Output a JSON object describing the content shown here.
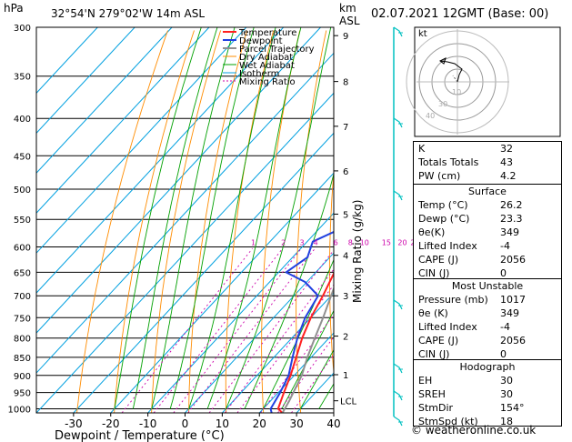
{
  "header": {
    "pressure_unit": "hPa",
    "location": "32°54'N  279°02'W  14m  ASL",
    "height_unit": "km",
    "height_unit2": "ASL",
    "datetime": "02.07.2021  12GMT  (Base: 00)"
  },
  "colors": {
    "temperature": "#ff2020",
    "dewpoint": "#2040e0",
    "parcel": "#909090",
    "dry_adiabat": "#ff8c00",
    "wet_adiabat": "#00a000",
    "isotherm": "#00a0e0",
    "mixing_ratio": "#cc00aa",
    "wind": "#00c0c0"
  },
  "chart_data": {
    "type": "line",
    "xlabel": "Dewpoint / Temperature (°C)",
    "ylabel": "Mixing Ratio (g/kg)",
    "x_ticks": [
      -30,
      -20,
      -10,
      0,
      10,
      20,
      30,
      40
    ],
    "xlim": [
      -40,
      40
    ],
    "pressure_levels": [
      300,
      350,
      400,
      450,
      500,
      550,
      600,
      650,
      700,
      750,
      800,
      850,
      900,
      950,
      1000
    ],
    "ylim_hpa": [
      1013,
      300
    ],
    "height_ticks_km": [
      {
        "label": "9",
        "p": 308
      },
      {
        "label": "8",
        "p": 356
      },
      {
        "label": "7",
        "p": 410
      },
      {
        "label": "6",
        "p": 472
      },
      {
        "label": "5",
        "p": 541
      },
      {
        "label": "4",
        "p": 616
      },
      {
        "label": "3",
        "p": 700
      },
      {
        "label": "2",
        "p": 795
      },
      {
        "label": "1",
        "p": 898
      },
      {
        "label": "LCL",
        "p": 975
      }
    ],
    "mixing_ratio_labels": [
      "1",
      "2",
      "3",
      "4",
      "6",
      "8",
      "10",
      "15",
      "20",
      "25"
    ],
    "legend": [
      "Temperature",
      "Dewpoint",
      "Parcel Trajectory",
      "Dry Adiabat",
      "Wet Adiabat",
      "Isotherm",
      "Mixing Ratio"
    ],
    "series": [
      {
        "name": "Temperature",
        "points": [
          [
            26.2,
            1013
          ],
          [
            24,
            1000
          ],
          [
            21.5,
            950
          ],
          [
            19,
            900
          ],
          [
            16,
            850
          ],
          [
            12.8,
            800
          ],
          [
            10,
            750
          ],
          [
            7.8,
            700
          ],
          [
            5,
            650
          ],
          [
            1.8,
            600
          ],
          [
            -2.5,
            550
          ],
          [
            -6.5,
            500
          ],
          [
            -11,
            450
          ],
          [
            -16.5,
            400
          ],
          [
            -23.5,
            350
          ],
          [
            -33,
            300
          ]
        ]
      },
      {
        "name": "Dewpoint",
        "points": [
          [
            23.3,
            1013
          ],
          [
            22,
            1000
          ],
          [
            20.5,
            950
          ],
          [
            18.5,
            900
          ],
          [
            15,
            850
          ],
          [
            11.5,
            800
          ],
          [
            8.5,
            750
          ],
          [
            6.5,
            700
          ],
          [
            -0.5,
            670
          ],
          [
            -8,
            650
          ],
          [
            -6,
            620
          ],
          [
            -8.5,
            590
          ],
          [
            -3,
            560
          ],
          [
            -7.5,
            520
          ],
          [
            -16,
            500
          ],
          [
            -20,
            450
          ],
          [
            -26.5,
            400
          ],
          [
            -33,
            370
          ],
          [
            -18,
            360
          ],
          [
            -18,
            345
          ],
          [
            -23,
            335
          ],
          [
            -24,
            310
          ],
          [
            -31,
            300
          ]
        ]
      },
      {
        "name": "Parcel Trajectory",
        "points": [
          [
            26.2,
            1013
          ],
          [
            25,
            975
          ],
          [
            22,
            900
          ],
          [
            19,
            850
          ],
          [
            16.2,
            800
          ],
          [
            13.3,
            750
          ],
          [
            10,
            700
          ],
          [
            6.5,
            650
          ],
          [
            2.8,
            600
          ],
          [
            -1.3,
            550
          ],
          [
            -5.8,
            500
          ],
          [
            -11,
            450
          ],
          [
            -17,
            400
          ],
          [
            -24.5,
            350
          ]
        ]
      }
    ]
  },
  "hodograph": {
    "label": "kt",
    "ring_labels": [
      "10",
      "30",
      "40"
    ]
  },
  "indices": [
    {
      "k": "K",
      "v": "32"
    },
    {
      "k": "Totals Totals",
      "v": "43"
    },
    {
      "k": "PW (cm)",
      "v": "4.2"
    }
  ],
  "surface": {
    "title": "Surface",
    "rows": [
      {
        "k": "Temp (°C)",
        "v": "26.2"
      },
      {
        "k": "Dewp (°C)",
        "v": "23.3"
      },
      {
        "k": "θe(K)",
        "v": "349"
      },
      {
        "k": "Lifted Index",
        "v": "-4"
      },
      {
        "k": "CAPE (J)",
        "v": "2056"
      },
      {
        "k": "CIN (J)",
        "v": "0"
      }
    ]
  },
  "most_unstable": {
    "title": "Most Unstable",
    "rows": [
      {
        "k": "Pressure (mb)",
        "v": "1017"
      },
      {
        "k": "θe (K)",
        "v": "349"
      },
      {
        "k": "Lifted Index",
        "v": "-4"
      },
      {
        "k": "CAPE (J)",
        "v": "2056"
      },
      {
        "k": "CIN (J)",
        "v": "0"
      }
    ]
  },
  "hodograph_table": {
    "title": "Hodograph",
    "rows": [
      {
        "k": "EH",
        "v": "30"
      },
      {
        "k": "SREH",
        "v": "30"
      },
      {
        "k": "StmDir",
        "v": "154°"
      },
      {
        "k": "StmSpd (kt)",
        "v": "18"
      }
    ]
  },
  "footer": "© weatheronline.co.uk"
}
